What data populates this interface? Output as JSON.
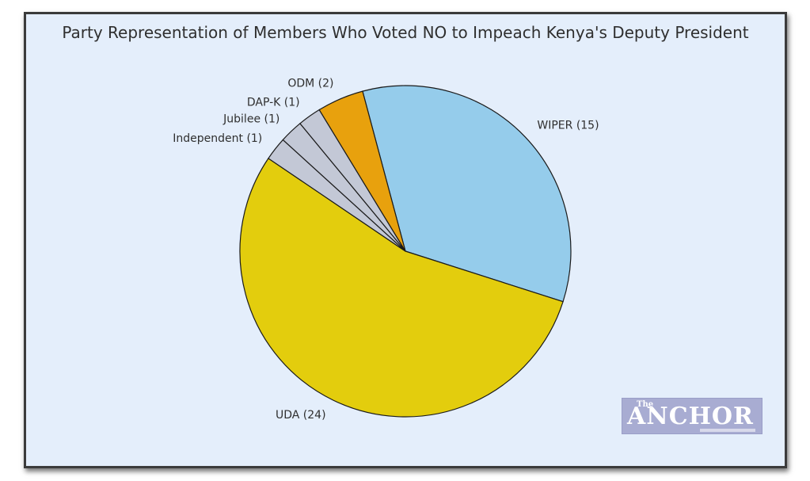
{
  "chart_data": {
    "type": "pie",
    "title": "Party Representation of Members Who Voted NO to Impeach Kenya's Deputy President",
    "slices": [
      {
        "label": "WIPER (15)",
        "value": 15,
        "color": "#95cceb"
      },
      {
        "label": "UDA (24)",
        "value": 24,
        "color": "#e3cd0d"
      },
      {
        "label": "Independent (1)",
        "value": 1,
        "color": "#c3c8d6"
      },
      {
        "label": "Jubilee (1)",
        "value": 1,
        "color": "#c3c8d6"
      },
      {
        "label": "DAP-K (1)",
        "value": 1,
        "color": "#c3c8d6"
      },
      {
        "label": "ODM (2)",
        "value": 2,
        "color": "#e8a10d"
      }
    ],
    "start_angle_deg": 105,
    "direction": "clockwise",
    "edge_color": "#1a1a1a"
  },
  "logo": {
    "small_text": "The",
    "big_text": "ANCHOR"
  },
  "colors": {
    "background": "#e4eefb",
    "border": "#3b3b3b"
  }
}
